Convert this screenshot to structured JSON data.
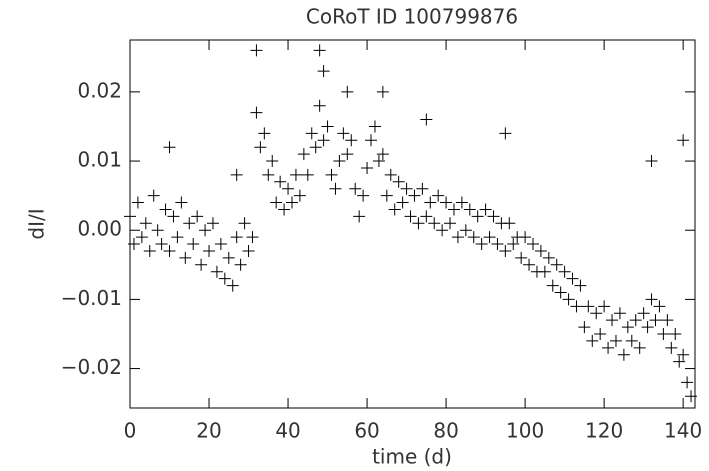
{
  "chart_data": {
    "type": "scatter",
    "title": "CoRoT ID 100799876",
    "x_label": "time (d)",
    "y_label": "dI/I",
    "color": "#000000",
    "xlim": [
      0,
      143
    ],
    "xticks": [
      0,
      20,
      40,
      60,
      80,
      100,
      120,
      140
    ],
    "ylim": [
      -0.0257,
      0.0275
    ],
    "yticks": [
      {
        "value": -0.02,
        "label": "−0.02"
      },
      {
        "value": -0.01,
        "label": "−0.01"
      },
      {
        "value": 0,
        "label": "0.00"
      },
      0.01,
      0.02
    ],
    "x": [
      0,
      1,
      2,
      3,
      4,
      5,
      6,
      7,
      8,
      9,
      10,
      11,
      12,
      13,
      14,
      15,
      16,
      17,
      18,
      19,
      20,
      21,
      22,
      23,
      24,
      25,
      26,
      27,
      28,
      29,
      30,
      31,
      32,
      33,
      34,
      35,
      36,
      37,
      38,
      39,
      40,
      41,
      42,
      43,
      44,
      45,
      46,
      47,
      48,
      49,
      50,
      51,
      52,
      53,
      54,
      55,
      56,
      57,
      58,
      59,
      60,
      61,
      62,
      63,
      64,
      65,
      66,
      67,
      68,
      69,
      70,
      71,
      72,
      73,
      74,
      75,
      76,
      77,
      78,
      79,
      80,
      81,
      82,
      83,
      84,
      85,
      86,
      87,
      88,
      89,
      90,
      91,
      92,
      93,
      94,
      95,
      96,
      97,
      98,
      99,
      100,
      101,
      102,
      103,
      104,
      105,
      106,
      107,
      108,
      109,
      110,
      111,
      112,
      113,
      114,
      115,
      116,
      117,
      118,
      119,
      120,
      121,
      122,
      123,
      124,
      125,
      126,
      127,
      128,
      129,
      130,
      131,
      132,
      133,
      134,
      135,
      136,
      137,
      138,
      139,
      140,
      141,
      142,
      32,
      48,
      49,
      55,
      64,
      75,
      95,
      132,
      140,
      27,
      10
    ],
    "values": [
      0.002,
      -0.002,
      0.004,
      -0.001,
      0.001,
      -0.003,
      0.005,
      0.0,
      -0.002,
      0.003,
      -0.003,
      0.002,
      -0.001,
      0.004,
      -0.004,
      0.001,
      -0.002,
      0.002,
      -0.005,
      0.0,
      -0.003,
      0.001,
      -0.006,
      -0.002,
      -0.007,
      -0.004,
      -0.008,
      -0.001,
      -0.005,
      0.001,
      -0.003,
      -0.001,
      0.017,
      0.012,
      0.014,
      0.008,
      0.01,
      0.004,
      0.007,
      0.003,
      0.006,
      0.004,
      0.008,
      0.005,
      0.011,
      0.008,
      0.014,
      0.012,
      0.018,
      0.013,
      0.015,
      0.008,
      0.006,
      0.01,
      0.014,
      0.011,
      0.013,
      0.006,
      0.002,
      0.005,
      0.009,
      0.013,
      0.015,
      0.01,
      0.011,
      0.005,
      0.008,
      0.003,
      0.007,
      0.004,
      0.006,
      0.002,
      0.005,
      0.001,
      0.006,
      0.002,
      0.004,
      0.001,
      0.005,
      0.0,
      0.004,
      0.001,
      0.003,
      -0.001,
      0.004,
      0.0,
      0.003,
      -0.001,
      0.002,
      -0.002,
      0.003,
      -0.001,
      0.002,
      -0.002,
      0.001,
      -0.003,
      0.001,
      -0.002,
      -0.001,
      -0.004,
      -0.001,
      -0.005,
      -0.002,
      -0.006,
      -0.003,
      -0.006,
      -0.004,
      -0.008,
      -0.005,
      -0.009,
      -0.006,
      -0.01,
      -0.007,
      -0.011,
      -0.008,
      -0.014,
      -0.011,
      -0.016,
      -0.012,
      -0.015,
      -0.011,
      -0.017,
      -0.013,
      -0.016,
      -0.012,
      -0.018,
      -0.014,
      -0.016,
      -0.013,
      -0.017,
      -0.012,
      -0.014,
      -0.01,
      -0.013,
      -0.011,
      -0.015,
      -0.013,
      -0.017,
      -0.015,
      -0.019,
      -0.018,
      -0.022,
      -0.024,
      0.026,
      0.026,
      0.023,
      0.02,
      0.02,
      0.016,
      0.014,
      0.01,
      0.013,
      0.008,
      0.012
    ]
  }
}
